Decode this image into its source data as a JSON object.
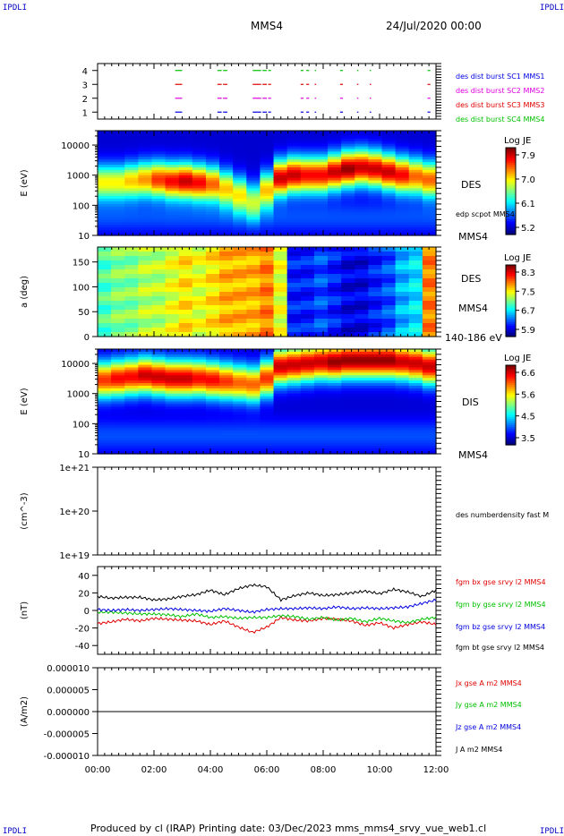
{
  "corner_label": "IPDLI",
  "header": {
    "title": "MMS4",
    "date": "24/Jul/2020 00:00"
  },
  "footer": {
    "text": "Produced by cl (IRAP)   Printing date: 03/Dec/2023   mms_mms4_srvy_vue_web1.cl"
  },
  "colors": {
    "red": "#e00000",
    "green": "#00c000",
    "blue": "#0000e0",
    "magenta": "#e000e0",
    "black": "#000000"
  },
  "chart_data": [
    {
      "type": "scatter",
      "id": "burst",
      "ylim": [
        0.5,
        4.5
      ],
      "yticks": [
        "1",
        "2",
        "3",
        "4"
      ],
      "series": [
        {
          "name": "des dist burst SC1 MMS1",
          "y": 1,
          "color": "#0000e0",
          "segments": [
            [
              2.75,
              3.0
            ],
            [
              4.25,
              4.4
            ],
            [
              4.45,
              4.6
            ],
            [
              5.5,
              5.8
            ],
            [
              5.85,
              6.0
            ],
            [
              6.05,
              6.15
            ],
            [
              7.2,
              7.3
            ],
            [
              7.4,
              7.5
            ],
            [
              7.7,
              7.75
            ],
            [
              8.6,
              8.7
            ],
            [
              9.2,
              9.25
            ],
            [
              9.65,
              9.7
            ],
            [
              11.7,
              11.8
            ]
          ]
        },
        {
          "name": "des dist burst SC2 MMS2",
          "y": 2,
          "color": "#e000e0",
          "segments": [
            [
              2.75,
              3.0
            ],
            [
              4.25,
              4.4
            ],
            [
              4.45,
              4.6
            ],
            [
              5.5,
              5.8
            ],
            [
              5.85,
              6.0
            ],
            [
              6.05,
              6.15
            ],
            [
              7.2,
              7.3
            ],
            [
              7.4,
              7.5
            ],
            [
              7.7,
              7.75
            ],
            [
              8.6,
              8.7
            ],
            [
              9.2,
              9.25
            ],
            [
              9.65,
              9.7
            ],
            [
              11.7,
              11.8
            ]
          ]
        },
        {
          "name": "des dist burst SC3 MMS3",
          "y": 3,
          "color": "#e00000",
          "segments": [
            [
              2.75,
              3.0
            ],
            [
              4.25,
              4.4
            ],
            [
              4.45,
              4.6
            ],
            [
              5.5,
              5.8
            ],
            [
              5.85,
              6.0
            ],
            [
              6.05,
              6.15
            ],
            [
              7.2,
              7.3
            ],
            [
              7.4,
              7.5
            ],
            [
              7.7,
              7.75
            ],
            [
              8.6,
              8.7
            ],
            [
              9.2,
              9.25
            ],
            [
              9.65,
              9.7
            ],
            [
              11.7,
              11.8
            ]
          ]
        },
        {
          "name": "des dist burst SC4 MMS4",
          "y": 4,
          "color": "#00c000",
          "segments": [
            [
              2.75,
              3.0
            ],
            [
              4.25,
              4.4
            ],
            [
              4.45,
              4.6
            ],
            [
              5.5,
              5.8
            ],
            [
              5.85,
              6.0
            ],
            [
              6.05,
              6.15
            ],
            [
              7.2,
              7.3
            ],
            [
              7.4,
              7.5
            ],
            [
              7.7,
              7.75
            ],
            [
              8.6,
              8.7
            ],
            [
              9.2,
              9.25
            ],
            [
              9.65,
              9.7
            ],
            [
              11.7,
              11.8
            ]
          ]
        }
      ]
    },
    {
      "type": "heatmap",
      "id": "des_energy",
      "ylabel": "E (eV)",
      "yscale": "log",
      "ylim": [
        10,
        30000
      ],
      "yticks": [
        "10",
        "100",
        "1000",
        "10000"
      ],
      "labels": [
        "DES",
        "edp scpot MMS4"
      ],
      "bottom_label": "MMS4",
      "colorbar": {
        "title": "Log JE",
        "ticks": [
          "7.9",
          "7.0",
          "6.1",
          "5.2"
        ]
      },
      "peak_log_energy": [
        2.75,
        2.75,
        2.8,
        2.85,
        2.85,
        2.8,
        2.8,
        2.75,
        2.7,
        2.55,
        2.35,
        2.15,
        2.5,
        2.9,
        3.0,
        3.0,
        3.0,
        3.1,
        3.2,
        3.25,
        3.2,
        3.1,
        3.0,
        2.95,
        2.85
      ],
      "peak_intensity": [
        0.55,
        0.55,
        0.6,
        0.65,
        0.75,
        0.8,
        0.85,
        0.8,
        0.7,
        0.6,
        0.55,
        0.45,
        0.6,
        0.85,
        0.85,
        0.8,
        0.8,
        0.85,
        0.9,
        0.85,
        0.85,
        0.85,
        0.8,
        0.7,
        0.7
      ]
    },
    {
      "type": "heatmap",
      "id": "des_pitch",
      "ylabel": "a (deg)",
      "ylim": [
        0,
        180
      ],
      "yticks": [
        "0",
        "50",
        "100",
        "150"
      ],
      "labels": [
        "DES",
        "MMS4"
      ],
      "bottom_label": "140-186 eV",
      "colorbar": {
        "title": "Log JE",
        "ticks": [
          "8.3",
          "7.5",
          "6.7",
          "5.9"
        ]
      },
      "column_level": [
        0.45,
        0.5,
        0.5,
        0.55,
        0.55,
        0.6,
        0.65,
        0.6,
        0.65,
        0.7,
        0.7,
        0.7,
        0.75,
        0.6,
        0.15,
        0.15,
        0.2,
        0.15,
        0.1,
        0.1,
        0.15,
        0.2,
        0.3,
        0.35,
        0.75
      ]
    },
    {
      "type": "heatmap",
      "id": "dis_energy",
      "ylabel": "E (eV)",
      "yscale": "log",
      "ylim": [
        10,
        30000
      ],
      "yticks": [
        "10",
        "100",
        "1000",
        "10000"
      ],
      "labels": [
        "DIS"
      ],
      "bottom_label": "MMS4",
      "colorbar": {
        "title": "Log JE",
        "ticks": [
          "6.6",
          "5.6",
          "4.5",
          "3.5"
        ]
      },
      "peak_log_energy": [
        3.45,
        3.5,
        3.55,
        3.6,
        3.55,
        3.5,
        3.5,
        3.5,
        3.45,
        3.4,
        3.35,
        3.3,
        3.5,
        3.9,
        3.95,
        4.0,
        4.05,
        4.05,
        4.1,
        4.1,
        4.1,
        4.1,
        4.05,
        4.0,
        3.9
      ],
      "peak_intensity": [
        0.75,
        0.8,
        0.8,
        0.85,
        0.85,
        0.85,
        0.85,
        0.8,
        0.8,
        0.75,
        0.7,
        0.7,
        0.75,
        0.85,
        0.85,
        0.85,
        0.85,
        0.9,
        0.9,
        0.9,
        0.9,
        0.9,
        0.85,
        0.85,
        0.85
      ]
    },
    {
      "type": "line",
      "id": "density",
      "ylabel": "(cm^-3)",
      "yscale": "log",
      "ylim": [
        1e+19,
        1e+21
      ],
      "yticks": [
        "1e+19",
        "1e+20",
        "1e+21"
      ],
      "series": [
        {
          "name": "des numberdensity fast M",
          "color": "#000000",
          "x": [],
          "y": []
        }
      ]
    },
    {
      "type": "line",
      "id": "fgm",
      "ylabel": "(nT)",
      "ylim": [
        -50,
        50
      ],
      "yticks": [
        "-40",
        "-20",
        "0",
        "20",
        "40"
      ],
      "x": [
        0.0,
        0.5,
        1.0,
        1.5,
        2.0,
        2.5,
        3.0,
        3.5,
        4.0,
        4.5,
        5.0,
        5.5,
        6.0,
        6.5,
        7.0,
        7.5,
        8.0,
        8.5,
        9.0,
        9.5,
        10.0,
        10.5,
        11.0,
        11.5,
        12.0
      ],
      "series": [
        {
          "name": "fgm bx gse srvy l2 MMS4",
          "color": "#e00000",
          "y": [
            -15,
            -13,
            -10,
            -12,
            -9,
            -10,
            -11,
            -12,
            -16,
            -12,
            -19,
            -25,
            -19,
            -8,
            -11,
            -12,
            -9,
            -10,
            -12,
            -17,
            -14,
            -20,
            -16,
            -13,
            -16
          ]
        },
        {
          "name": "fgm by gse srvy l2 MMS4",
          "color": "#00c000",
          "y": [
            -2,
            -2,
            -3,
            -4,
            -4,
            -5,
            -7,
            -4,
            -8,
            -7,
            -9,
            -8,
            -8,
            -6,
            -7,
            -10,
            -8,
            -11,
            -9,
            -13,
            -9,
            -12,
            -14,
            -10,
            -8
          ]
        },
        {
          "name": "fgm bz gse srvy l2 MMS4",
          "color": "#0000e0",
          "y": [
            1,
            0,
            1,
            0,
            1,
            2,
            1,
            0,
            -1,
            2,
            0,
            -2,
            1,
            2,
            2,
            3,
            2,
            4,
            2,
            3,
            2,
            3,
            4,
            8,
            12
          ]
        },
        {
          "name": "fgm bt gse srvy l2 MMS4",
          "color": "#000000",
          "y": [
            16,
            14,
            15,
            15,
            12,
            13,
            16,
            18,
            23,
            18,
            25,
            29,
            27,
            12,
            17,
            20,
            17,
            18,
            20,
            22,
            19,
            24,
            21,
            16,
            23
          ]
        }
      ]
    },
    {
      "type": "line",
      "id": "current",
      "ylabel": "(A/m2)",
      "ylim": [
        -1e-05,
        1e-05
      ],
      "yticks": [
        "-0.000010",
        "-0.000005",
        "0.000000",
        "0.000005",
        "0.000010"
      ],
      "x": [
        0.0,
        0.5,
        1.0,
        1.5,
        2.0,
        2.5,
        3.0,
        3.5,
        4.0,
        4.5,
        5.0,
        5.5,
        6.0,
        6.5,
        7.0,
        7.5,
        8.0,
        8.5,
        9.0,
        9.5,
        10.0,
        10.5,
        11.0,
        11.5,
        12.0
      ],
      "series": [
        {
          "name": "Jx gse A m2 MMS4",
          "color": "#e00000",
          "y": [
            0,
            0,
            0,
            0,
            0,
            0,
            0,
            0,
            0,
            0,
            0,
            0,
            0,
            0,
            0,
            0,
            0,
            0,
            0,
            0,
            0,
            0,
            0,
            0,
            0
          ]
        },
        {
          "name": "Jy gse A m2 MMS4",
          "color": "#00c000",
          "y": [
            0,
            0,
            0,
            0,
            0,
            0,
            0,
            0,
            0,
            0,
            0,
            0,
            0,
            0,
            0,
            0,
            0,
            0,
            0,
            0,
            0,
            0,
            0,
            0,
            0
          ]
        },
        {
          "name": "Jz gse A m2 MMS4",
          "color": "#0000e0",
          "y": [
            0,
            0,
            0,
            0,
            0,
            0,
            0,
            0,
            0,
            0,
            0,
            0,
            0,
            0,
            0,
            0,
            0,
            0,
            0,
            0,
            0,
            0,
            0,
            0,
            0
          ]
        },
        {
          "name": "J A m2 MMS4",
          "color": "#000000",
          "y": [
            0,
            0,
            0,
            0,
            0,
            0,
            0,
            0,
            0,
            0,
            0,
            0,
            0,
            0,
            0,
            0,
            0,
            0,
            0,
            0,
            0,
            0,
            0,
            0,
            0
          ]
        }
      ]
    }
  ],
  "time_axis": {
    "xlim": [
      0,
      12
    ],
    "ticks": [
      "00:00",
      "02:00",
      "04:00",
      "06:00",
      "08:00",
      "10:00",
      "12:00"
    ]
  }
}
